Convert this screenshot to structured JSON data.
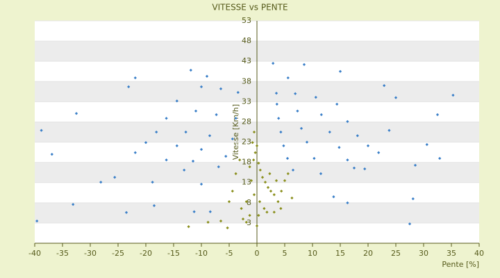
{
  "chart_data": {
    "type": "scatter",
    "title": "VITESSE vs PENTE",
    "xlabel": "Pente [%]",
    "ylabel": "Vitesse [Km/h]",
    "xlim": [
      -40,
      40
    ],
    "xticks": [
      -40,
      -35,
      -30,
      -25,
      -20,
      -15,
      -10,
      -5,
      0,
      5,
      10,
      15,
      20,
      25,
      30,
      35,
      40
    ],
    "ylim": [
      -2,
      53
    ],
    "yticks": [
      3,
      8,
      13,
      18,
      23,
      28,
      33,
      38,
      43,
      48,
      53
    ],
    "grid": true,
    "series": [
      {
        "color": "#3a7fc8",
        "x": [
          3.5,
          3.6,
          3.9,
          4.3,
          4.8,
          5.5,
          6.5,
          6.9,
          7.3,
          8,
          9,
          10.3,
          11.5,
          10.6,
          11.6,
          13.1,
          14.8,
          16.3,
          17.5,
          14.4,
          16.3,
          18.1,
          20,
          21.9,
          -3.4,
          -3.8,
          -4.4,
          -5.6,
          -6.9,
          -6.5,
          -7.3,
          -8.5,
          -10,
          -11.5,
          -13.1,
          -10,
          -11,
          -12.8,
          -14.4,
          -16.3,
          -14.4,
          -16.3,
          -18.1,
          -20,
          -21.9,
          -21.9,
          -23.1,
          -32.5,
          -38.8,
          -36.9,
          -28.1,
          -33.1,
          -39.6,
          -11.9,
          -9,
          2.9,
          5.6,
          8.5,
          15,
          22.9,
          25,
          35.3,
          32.5,
          23.8,
          30.6,
          28.5,
          19.4,
          28.1,
          27.5,
          -23.5,
          -18.5,
          -11.3,
          -8.4,
          -10,
          -18.8,
          -25.6,
          32.9,
          13.8,
          16.3
        ],
        "values": [
          35.1,
          32.4,
          28.9,
          25.5,
          22.1,
          19.0,
          16.1,
          35.0,
          30.7,
          26.4,
          23,
          19,
          15.2,
          34.1,
          29.8,
          25.5,
          21.7,
          18.6,
          16.6,
          32.4,
          28.1,
          24.6,
          22.1,
          20.4,
          35.3,
          28.9,
          23.8,
          19.5,
          16.9,
          36.2,
          29.8,
          24.6,
          21.2,
          18.3,
          16.1,
          36.7,
          30.7,
          25.5,
          22.1,
          18.6,
          33.2,
          28.9,
          25.5,
          22.9,
          20.4,
          38.9,
          36.7,
          30.1,
          25.9,
          20,
          13.1,
          7.6,
          3.5,
          40.8,
          39.3,
          42.5,
          38.9,
          42.2,
          40.5,
          37,
          34,
          34.6,
          29.8,
          25.9,
          22.4,
          17.3,
          16.4,
          9,
          2.8,
          5.6,
          7.3,
          5.8,
          5.8,
          12.6,
          13.1,
          14.3,
          19,
          9.5,
          8
        ]
      },
      {
        "color": "#8a8f1c",
        "x": [
          -0.5,
          -0.8,
          -0.3,
          0.3,
          0.6,
          1,
          1.5,
          2,
          2.5,
          3.1,
          3.8,
          4.4,
          5,
          5.6,
          6.3,
          4.3,
          3.1,
          1.3,
          0.3,
          0,
          -1.3,
          -1.9,
          -2.5,
          -2.8,
          -1.9,
          -3.1,
          -3.8,
          -4.4,
          -5,
          -6.5,
          -5.3,
          -8.8,
          -12.3,
          -1,
          -0.5,
          0.5,
          1.8,
          -0.6,
          0,
          -1.3,
          2.3,
          3.5
        ],
        "values": [
          25.5,
          22.9,
          20.4,
          17.8,
          16.1,
          14.3,
          13.1,
          11.8,
          10.9,
          10,
          8.3,
          10.9,
          13.5,
          15.2,
          9.2,
          6.6,
          5.7,
          6.6,
          4.9,
          2.3,
          4.9,
          3.2,
          4,
          6.6,
          8.3,
          18.6,
          15.2,
          10.9,
          8.3,
          3.5,
          1.8,
          3.2,
          2.1,
          13.5,
          10,
          8.3,
          5.7,
          18.6,
          22.1,
          16.9,
          15.2,
          13.5
        ]
      }
    ]
  }
}
